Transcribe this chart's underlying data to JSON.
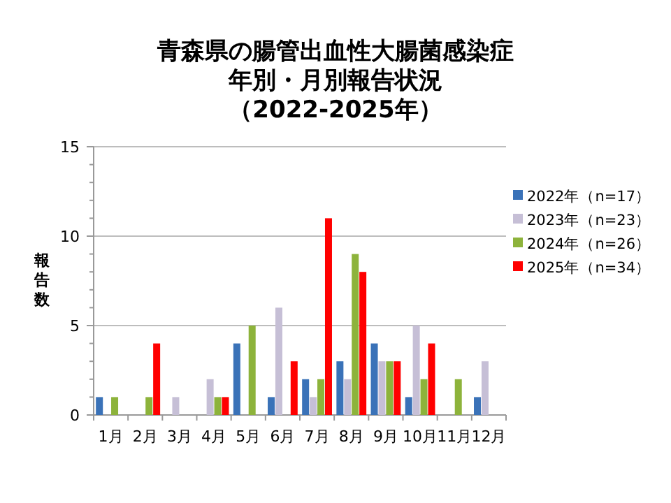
{
  "chart_data": {
    "type": "bar",
    "title": "青森県の腸管出血性大腸菌感染症",
    "subtitle": "年別・月別報告状況",
    "annotations": [
      "（2022-2025年）"
    ],
    "ylabel": "報告数",
    "categories": [
      "1月",
      "2月",
      "3月",
      "4月",
      "5月",
      "6月",
      "7月",
      "8月",
      "9月",
      "10月",
      "11月",
      "12月"
    ],
    "series": [
      {
        "name": "2022年（n=17）",
        "color": "#3a72b8",
        "values": [
          1,
          0,
          0,
          0,
          4,
          1,
          2,
          3,
          4,
          1,
          0,
          1
        ]
      },
      {
        "name": "2023年（n=23）",
        "color": "#c6bfd6",
        "values": [
          0,
          0,
          1,
          2,
          0,
          6,
          1,
          2,
          3,
          5,
          0,
          3
        ]
      },
      {
        "name": "2024年（n=26）",
        "color": "#8db33b",
        "values": [
          1,
          1,
          0,
          1,
          5,
          0,
          2,
          9,
          3,
          2,
          2,
          0
        ]
      },
      {
        "name": "2025年（n=34）",
        "color": "#ff0000",
        "values": [
          0,
          4,
          0,
          1,
          0,
          3,
          11,
          8,
          3,
          4,
          0,
          0
        ]
      }
    ],
    "ylim": [
      0,
      15
    ],
    "yticks": [
      0,
      5,
      10,
      15
    ],
    "grid": "y",
    "legend": "right"
  }
}
